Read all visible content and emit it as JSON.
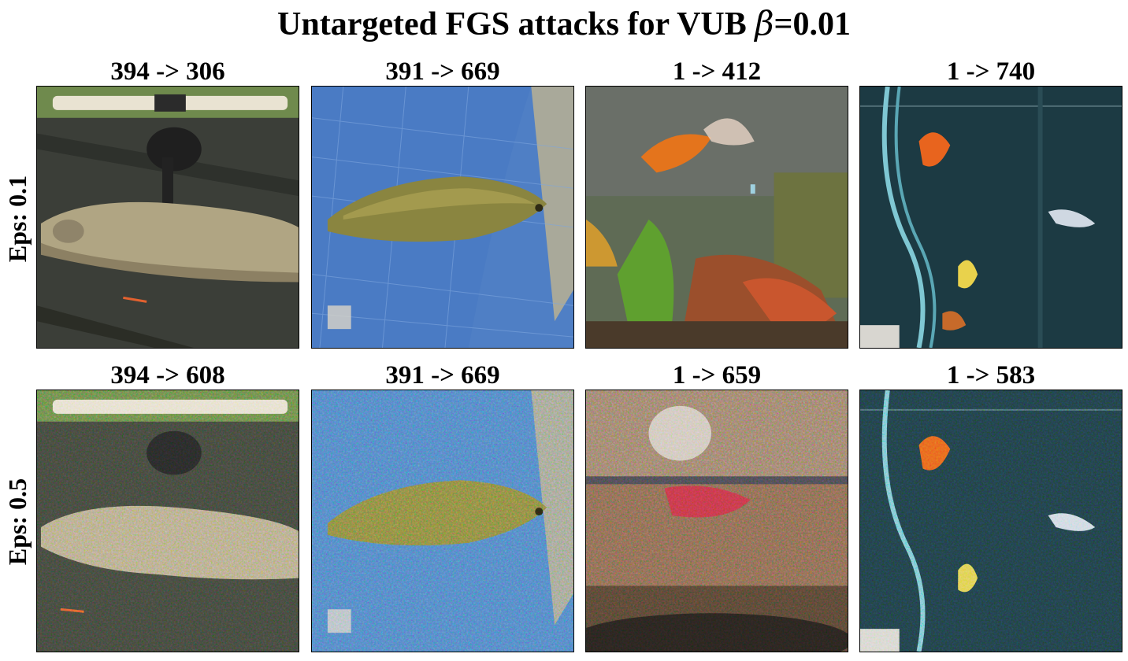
{
  "figure": {
    "title_prefix": "Untargeted FGS attacks for VUB ",
    "title_beta": "β",
    "title_suffix": "=0.01",
    "rows": [
      {
        "label": "Eps: 0.1",
        "cells": [
          {
            "caption": "394 -> 306"
          },
          {
            "caption": "391 -> 669"
          },
          {
            "caption": "1 -> 412"
          },
          {
            "caption": "1 -> 740"
          }
        ]
      },
      {
        "label": "Eps: 0.5",
        "cells": [
          {
            "caption": "394 -> 608"
          },
          {
            "caption": "391 -> 669"
          },
          {
            "caption": "1 -> 659"
          },
          {
            "caption": "1 -> 583"
          }
        ]
      }
    ]
  }
}
